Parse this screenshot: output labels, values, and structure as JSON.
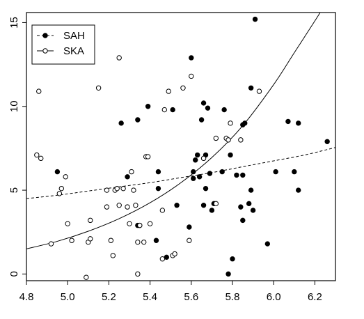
{
  "chart_data": {
    "type": "scatter",
    "title": "",
    "xlabel": "",
    "ylabel": "",
    "xlim": [
      4.8,
      6.3
    ],
    "ylim": [
      -0.4,
      15.6
    ],
    "x_ticks": [
      4.8,
      5.0,
      5.2,
      5.4,
      5.6,
      5.8,
      6.0,
      6.2
    ],
    "x_tick_labels": [
      "4.8",
      "5.0",
      "5.2",
      "5.4",
      "5.6",
      "5.8",
      "6.0",
      "6.2"
    ],
    "y_ticks": [
      0,
      5,
      10,
      15
    ],
    "y_tick_labels": [
      "0",
      "5",
      "10",
      "15"
    ],
    "grid": false,
    "legend": {
      "position": "top-left",
      "entries": [
        {
          "label": "SAH",
          "marker": "filled-circle",
          "line": "dashed"
        },
        {
          "label": "SKA",
          "marker": "open-circle",
          "line": "solid"
        }
      ]
    },
    "series": [
      {
        "name": "SAH",
        "marker": "filled",
        "points": [
          [
            4.95,
            6.1
          ],
          [
            5.26,
            9.0
          ],
          [
            5.29,
            5.8
          ],
          [
            5.34,
            9.2
          ],
          [
            5.34,
            2.9
          ],
          [
            5.35,
            2.9
          ],
          [
            5.39,
            10.0
          ],
          [
            5.43,
            2.0
          ],
          [
            5.44,
            5.1
          ],
          [
            5.44,
            6.1
          ],
          [
            5.48,
            1.0
          ],
          [
            5.51,
            9.8
          ],
          [
            5.53,
            4.1
          ],
          [
            5.59,
            2.8
          ],
          [
            5.6,
            12.9
          ],
          [
            5.61,
            6.1
          ],
          [
            5.61,
            5.7
          ],
          [
            5.62,
            6.8
          ],
          [
            5.63,
            7.1
          ],
          [
            5.64,
            5.8
          ],
          [
            5.65,
            9.2
          ],
          [
            5.66,
            10.2
          ],
          [
            5.66,
            4.1
          ],
          [
            5.67,
            5.1
          ],
          [
            5.67,
            7.1
          ],
          [
            5.68,
            9.9
          ],
          [
            5.69,
            6.0
          ],
          [
            5.7,
            3.8
          ],
          [
            5.71,
            4.2
          ],
          [
            5.75,
            6.1
          ],
          [
            5.76,
            9.8
          ],
          [
            5.78,
            0.0
          ],
          [
            5.79,
            7.1
          ],
          [
            5.8,
            0.9
          ],
          [
            5.82,
            5.9
          ],
          [
            5.84,
            4.0
          ],
          [
            5.85,
            3.2
          ],
          [
            5.85,
            5.9
          ],
          [
            5.85,
            8.9
          ],
          [
            5.86,
            9.0
          ],
          [
            5.88,
            4.2
          ],
          [
            5.89,
            11.1
          ],
          [
            5.89,
            5.0
          ],
          [
            5.9,
            3.8
          ],
          [
            5.91,
            15.2
          ],
          [
            5.97,
            1.8
          ],
          [
            6.01,
            6.1
          ],
          [
            6.07,
            9.1
          ],
          [
            6.1,
            6.1
          ],
          [
            6.12,
            9.0
          ],
          [
            6.12,
            5.0
          ],
          [
            6.26,
            7.9
          ]
        ]
      },
      {
        "name": "SKA",
        "marker": "open",
        "points": [
          [
            4.85,
            7.1
          ],
          [
            4.86,
            10.9
          ],
          [
            4.87,
            6.9
          ],
          [
            4.92,
            1.8
          ],
          [
            4.96,
            4.8
          ],
          [
            4.97,
            5.1
          ],
          [
            4.99,
            5.8
          ],
          [
            5.0,
            3.0
          ],
          [
            5.02,
            2.0
          ],
          [
            5.09,
            -0.2
          ],
          [
            5.1,
            1.9
          ],
          [
            5.11,
            2.1
          ],
          [
            5.11,
            3.2
          ],
          [
            5.15,
            11.1
          ],
          [
            5.19,
            4.0
          ],
          [
            5.19,
            5.0
          ],
          [
            5.21,
            2.0
          ],
          [
            5.22,
            1.1
          ],
          [
            5.23,
            5.0
          ],
          [
            5.24,
            5.1
          ],
          [
            5.25,
            12.9
          ],
          [
            5.25,
            4.1
          ],
          [
            5.27,
            5.1
          ],
          [
            5.29,
            4.0
          ],
          [
            5.3,
            3.0
          ],
          [
            5.31,
            6.1
          ],
          [
            5.32,
            5.0
          ],
          [
            5.33,
            4.1
          ],
          [
            5.34,
            0.0
          ],
          [
            5.34,
            1.9
          ],
          [
            5.35,
            2.9
          ],
          [
            5.37,
            1.9
          ],
          [
            5.38,
            7.0
          ],
          [
            5.39,
            7.0
          ],
          [
            5.4,
            3.0
          ],
          [
            5.46,
            3.8
          ],
          [
            5.46,
            0.9
          ],
          [
            5.47,
            9.8
          ],
          [
            5.51,
            1.1
          ],
          [
            5.52,
            1.2
          ],
          [
            5.56,
            11.1
          ],
          [
            5.59,
            2.0
          ],
          [
            5.6,
            11.8
          ],
          [
            5.72,
            8.1
          ],
          [
            5.72,
            4.2
          ],
          [
            5.77,
            8.1
          ],
          [
            5.78,
            8.0
          ],
          [
            5.79,
            9.0
          ],
          [
            5.84,
            8.0
          ],
          [
            5.93,
            10.9
          ],
          [
            5.66,
            6.9
          ],
          [
            5.49,
            10.9
          ]
        ]
      }
    ],
    "fit_lines": [
      {
        "series": "SAH",
        "style": "dashed",
        "x": [
          4.8,
          4.95,
          5.1,
          5.25,
          5.4,
          5.55,
          5.7,
          5.85,
          6.0,
          6.15,
          6.3
        ],
        "y": [
          4.5,
          4.7,
          4.95,
          5.2,
          5.45,
          5.75,
          6.05,
          6.4,
          6.75,
          7.1,
          7.55
        ]
      },
      {
        "series": "SKA",
        "style": "solid",
        "x": [
          4.8,
          4.95,
          5.1,
          5.25,
          5.4,
          5.55,
          5.7,
          5.85,
          6.0,
          6.1,
          6.2,
          6.25,
          6.27
        ],
        "y": [
          1.5,
          1.95,
          2.55,
          3.3,
          4.25,
          5.45,
          6.95,
          8.85,
          11.3,
          13.2,
          15.1,
          16.1,
          16.7
        ]
      }
    ]
  }
}
